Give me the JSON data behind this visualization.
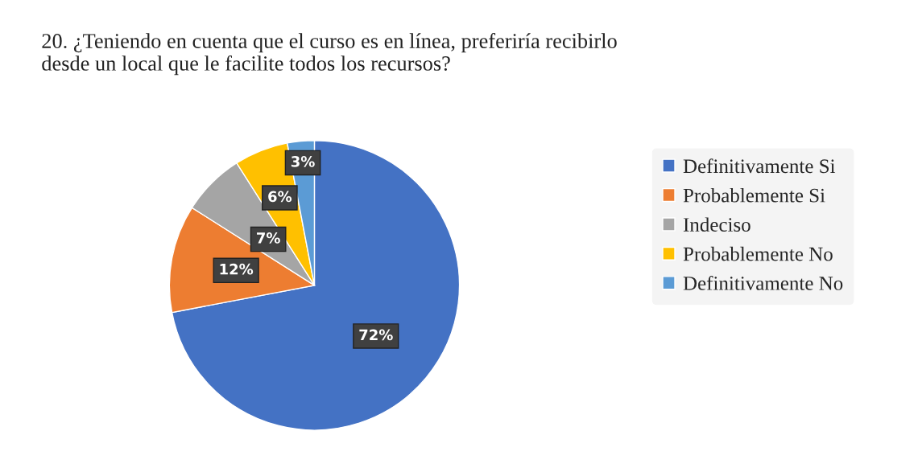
{
  "chart_data": {
    "type": "pie",
    "title": "20. ¿Teniendo en cuenta que el curso es en línea, preferiría recibirlo\ndesde un local que le facilite todos los recursos?",
    "categories": [
      "Definitivamente Si",
      "Probablemente Si",
      "Indeciso",
      "Probablemente No",
      "Definitivamente No"
    ],
    "values": [
      72,
      12,
      7,
      6,
      3
    ],
    "colors": [
      "#4472c4",
      "#ed7d31",
      "#a5a5a5",
      "#ffc000",
      "#5b9bd5"
    ],
    "value_labels": [
      "72%",
      "12%",
      "7%",
      "6%",
      "3%"
    ],
    "legend": "right"
  }
}
